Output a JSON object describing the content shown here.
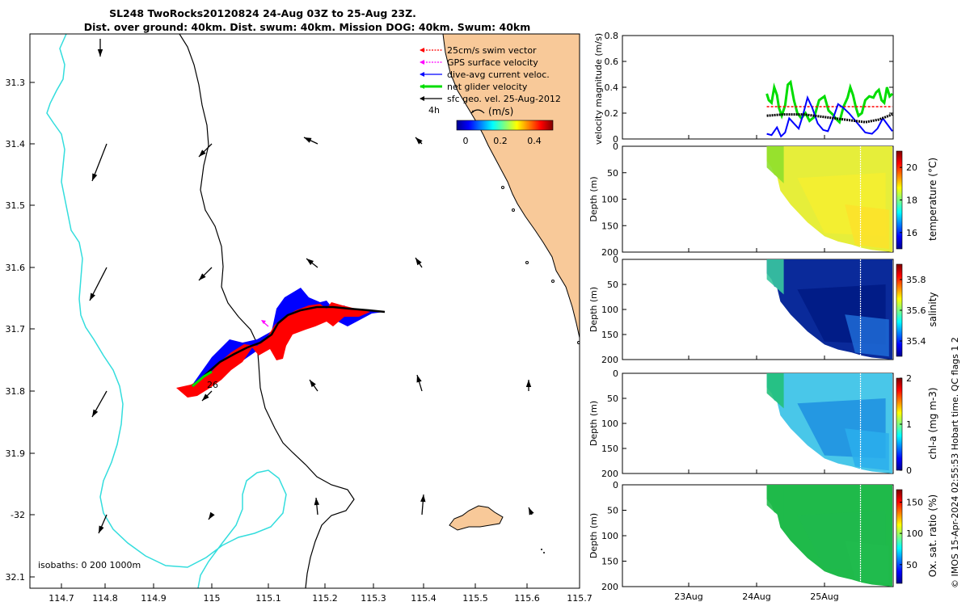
{
  "header": {
    "title_line1": "SL248 TwoRocks20120824 24-Aug 03Z to 25-Aug 23Z.",
    "title_line2": "Dist. over ground: 40km. Dist. swum: 40km. Mission DOG: 40km. Swum: 40km"
  },
  "map": {
    "lon_ticks": [
      "114.7",
      "114.8",
      "114.9",
      "115",
      "115.1",
      "115.2",
      "115.3",
      "115.4",
      "115.5",
      "115.6",
      "115.7"
    ],
    "lat_ticks": [
      "31.3",
      "31.4",
      "31.5",
      "31.6",
      "31.7",
      "31.8",
      "31.9",
      "-32",
      "32.1"
    ],
    "isobaths_label": "isobaths: 0   200  1000m",
    "track_label": "26",
    "legend": {
      "items": [
        "25cm/s swim vector",
        "GPS surface velocity",
        "dive-avg current veloc.",
        "net glider velocity",
        "sfc geo. vel. 25-Aug-2012"
      ],
      "colors": [
        "#ff0000",
        "#ff00ff",
        "#0000ff",
        "#00dd00",
        "#000000"
      ],
      "duration_label": "4h",
      "units_label": "(m/s)",
      "colorbar_ticks": [
        "0",
        "0.2",
        "0.4"
      ]
    },
    "colors": {
      "land": "#f8c999",
      "isobath_200": "#000000",
      "isobath_1000": "#33dddd"
    }
  },
  "copyright": "© IMOS 15-Apr-2024 02:55:53 Hobart time. QC flags 1  2",
  "chart_data": [
    {
      "type": "line",
      "title": "",
      "ylabel": "velocity magnitude (m/s)",
      "ylim": [
        0,
        0.8
      ],
      "yticks": [
        "0",
        "0.2",
        "0.4",
        "0.6",
        "0.8"
      ],
      "xlabel": "",
      "xticks": [
        "23Aug",
        "24Aug",
        "25Aug"
      ],
      "series": [
        {
          "name": "net glider velocity",
          "color": "#00dd00",
          "x": [
            24.15,
            24.18,
            24.22,
            24.26,
            24.3,
            24.33,
            24.37,
            24.42,
            24.46,
            24.5,
            24.55,
            24.6,
            24.66,
            24.72,
            24.78,
            24.85,
            24.92,
            25.0,
            25.06,
            25.12,
            25.18,
            25.22,
            25.28,
            25.34,
            25.38,
            25.42,
            25.46,
            25.5,
            25.55,
            25.6,
            25.66,
            25.72,
            25.76,
            25.8,
            25.84,
            25.88,
            25.92,
            25.96,
            26.0
          ],
          "values": [
            0.35,
            0.3,
            0.28,
            0.4,
            0.34,
            0.24,
            0.18,
            0.26,
            0.42,
            0.44,
            0.3,
            0.2,
            0.16,
            0.2,
            0.14,
            0.17,
            0.3,
            0.33,
            0.22,
            0.19,
            0.15,
            0.13,
            0.25,
            0.32,
            0.4,
            0.34,
            0.25,
            0.18,
            0.2,
            0.3,
            0.33,
            0.32,
            0.36,
            0.38,
            0.3,
            0.28,
            0.4,
            0.33,
            0.35
          ]
        },
        {
          "name": "swim vector",
          "color": "#ff0000",
          "dashed": true,
          "x": [
            24.15,
            24.4,
            24.7,
            25.0,
            25.3,
            25.6,
            25.9,
            26.0
          ],
          "values": [
            0.25,
            0.25,
            0.25,
            0.25,
            0.25,
            0.25,
            0.25,
            0.25
          ]
        },
        {
          "name": "dive-avg current veloc.",
          "color": "#0000ff",
          "x": [
            24.15,
            24.22,
            24.3,
            24.36,
            24.42,
            24.48,
            24.55,
            24.62,
            24.68,
            24.75,
            24.82,
            24.9,
            24.98,
            25.05,
            25.12,
            25.2,
            25.28,
            25.36,
            25.44,
            25.52,
            25.6,
            25.7,
            25.78,
            25.86,
            25.93,
            26.0
          ],
          "values": [
            0.04,
            0.03,
            0.09,
            0.02,
            0.05,
            0.16,
            0.12,
            0.08,
            0.18,
            0.32,
            0.24,
            0.12,
            0.07,
            0.06,
            0.15,
            0.27,
            0.24,
            0.2,
            0.15,
            0.1,
            0.05,
            0.04,
            0.08,
            0.16,
            0.11,
            0.06
          ]
        },
        {
          "name": "sfc geo. vel.",
          "color": "#000000",
          "dotted": true,
          "x": [
            24.15,
            24.4,
            24.7,
            25.0,
            25.3,
            25.6,
            25.8,
            26.0
          ],
          "values": [
            0.18,
            0.19,
            0.19,
            0.17,
            0.15,
            0.13,
            0.15,
            0.19
          ]
        }
      ]
    },
    {
      "type": "heatmap",
      "ylabel": "Depth (m)",
      "yticks": [
        "0",
        "50",
        "100",
        "150",
        "200"
      ],
      "xticks": [
        "23Aug",
        "24Aug",
        "25Aug"
      ],
      "colorbar_label": "temperature (°C)",
      "colorbar_ticks": [
        "16",
        "18",
        "20"
      ],
      "value_range": [
        15,
        21
      ]
    },
    {
      "type": "heatmap",
      "ylabel": "Depth (m)",
      "yticks": [
        "0",
        "50",
        "100",
        "150",
        "200"
      ],
      "xticks": [
        "23Aug",
        "24Aug",
        "25Aug"
      ],
      "colorbar_label": "salinity",
      "colorbar_ticks": [
        "35.4",
        "35.6",
        "35.8"
      ],
      "value_range": [
        35.3,
        35.9
      ]
    },
    {
      "type": "heatmap",
      "ylabel": "Depth (m)",
      "yticks": [
        "0",
        "50",
        "100",
        "150",
        "200"
      ],
      "xticks": [
        "23Aug",
        "24Aug",
        "25Aug"
      ],
      "colorbar_label": "chl-a (mg m-3)",
      "colorbar_ticks": [
        "0",
        "1",
        "2"
      ],
      "value_range": [
        0,
        2
      ]
    },
    {
      "type": "heatmap",
      "ylabel": "Depth (m)",
      "yticks": [
        "0",
        "50",
        "100",
        "150",
        "200"
      ],
      "xticks": [
        "23Aug",
        "24Aug",
        "25Aug"
      ],
      "colorbar_label": "Ox. sat. ratio (%)",
      "colorbar_ticks": [
        "50",
        "100",
        "150"
      ],
      "value_range": [
        20,
        170
      ]
    }
  ]
}
